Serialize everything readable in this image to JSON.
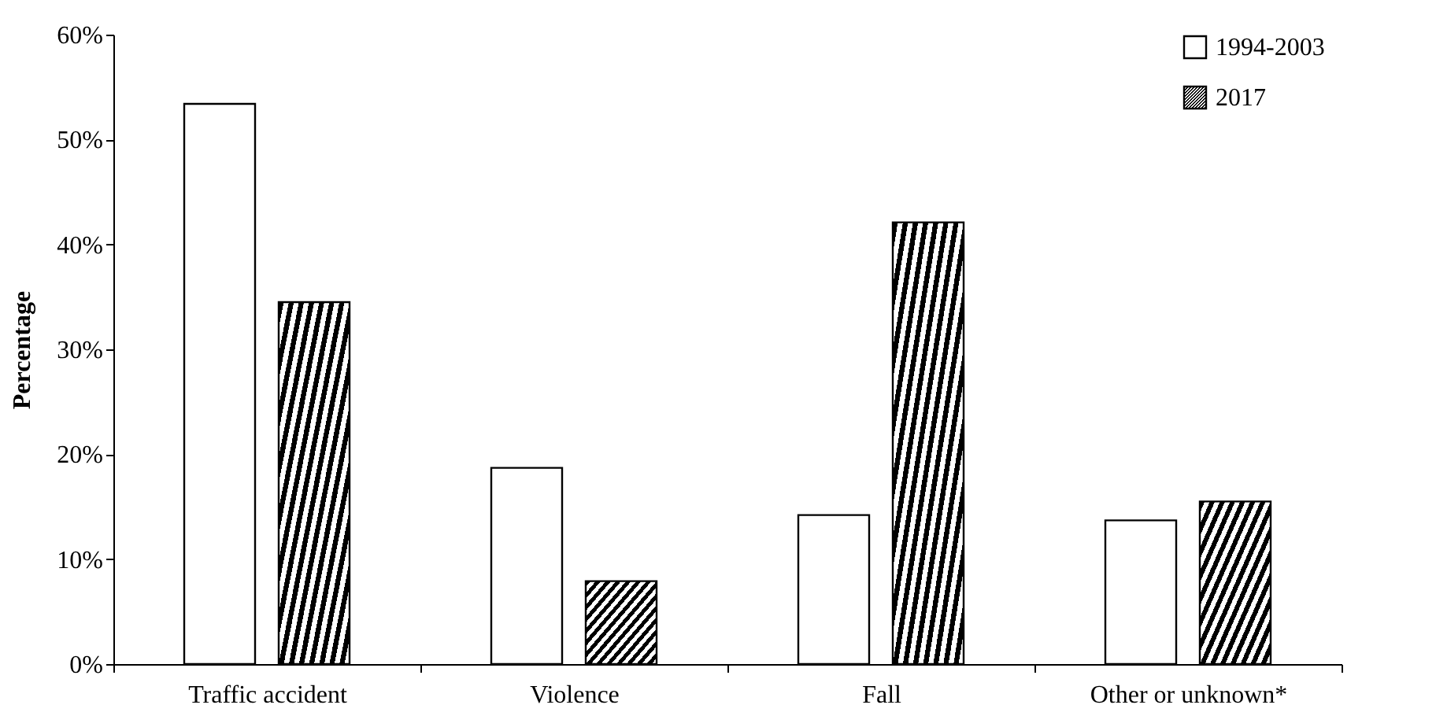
{
  "chart_data": {
    "type": "bar",
    "ylabel": "Percentage",
    "categories": [
      "Traffic accident",
      "Violence",
      "Fall",
      "Other or unknown*"
    ],
    "series": [
      {
        "name": "1994-2003",
        "color": "#ffffff",
        "values": [
          53.4,
          18.7,
          14.2,
          13.7
        ]
      },
      {
        "name": "2017",
        "color": "#000000",
        "values": [
          34.5,
          7.9,
          42.1,
          15.5
        ]
      }
    ],
    "ylim": [
      0,
      60
    ],
    "yticks": [
      {
        "value": 0,
        "label": "0%"
      },
      {
        "value": 10,
        "label": "10%"
      },
      {
        "value": 20,
        "label": "20%"
      },
      {
        "value": 30,
        "label": "30%"
      },
      {
        "value": 40,
        "label": "40%"
      },
      {
        "value": 50,
        "label": "50%"
      },
      {
        "value": 60,
        "label": "60%"
      }
    ],
    "grid": false,
    "legend": "top right"
  }
}
